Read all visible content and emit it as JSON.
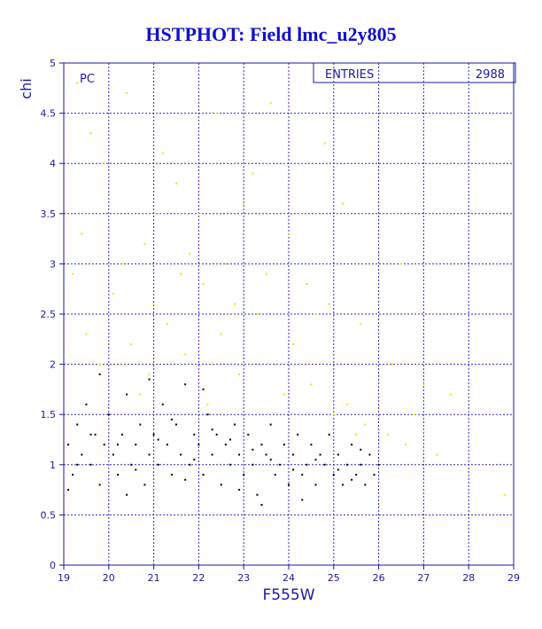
{
  "chart_data": {
    "type": "scatter",
    "title": "HSTPHOT: Field lmc_u2y805",
    "x_label": "F555W",
    "y_label": "chi",
    "annotation": "PC",
    "stats": {
      "label": "ENTRIES",
      "value": 2988
    },
    "xlim": [
      19,
      29
    ],
    "ylim": [
      0,
      5
    ],
    "xticks": [
      19,
      20,
      21,
      22,
      23,
      24,
      25,
      26,
      27,
      28,
      29
    ],
    "yticks": [
      0,
      0.5,
      1,
      1.5,
      2,
      2.5,
      3,
      3.5,
      4,
      4.5,
      5
    ],
    "grid": true,
    "series": [
      {
        "color": "#000000",
        "x": [
          19.1,
          19.2,
          19.3,
          19.4,
          19.5,
          19.6,
          19.7,
          19.8,
          19.9,
          20.0,
          20.1,
          20.2,
          20.3,
          20.4,
          20.5,
          20.6,
          20.7,
          20.8,
          20.9,
          21.0,
          21.1,
          21.2,
          21.3,
          21.4,
          21.5,
          21.6,
          21.7,
          21.8,
          21.9,
          22.0,
          22.1,
          22.2,
          22.3,
          22.4,
          22.5,
          22.6,
          22.7,
          22.8,
          22.9,
          23.0,
          23.1,
          23.2,
          23.3,
          23.4,
          23.5,
          23.6,
          23.7,
          23.8,
          23.9,
          24.0,
          24.1,
          24.2,
          24.3,
          24.4,
          24.5,
          24.6,
          24.7,
          24.8,
          24.9,
          25.0,
          25.1,
          25.2,
          25.3,
          25.4,
          25.5,
          25.6,
          25.7,
          25.8,
          25.9,
          26.0,
          19.3,
          19.6,
          20.2,
          20.6,
          21.1,
          21.4,
          21.9,
          22.3,
          22.7,
          23.2,
          23.6,
          24.1,
          24.6,
          25.1,
          25.6,
          19.8,
          20.9,
          22.1,
          23.4,
          24.3,
          25.4,
          19.1,
          20.4,
          21.7,
          22.9
        ],
        "values": [
          1.2,
          0.9,
          1.4,
          1.1,
          1.6,
          1.0,
          1.3,
          0.8,
          1.2,
          1.5,
          1.1,
          0.9,
          1.3,
          1.7,
          1.0,
          1.2,
          1.4,
          0.8,
          1.1,
          1.3,
          1.0,
          1.6,
          1.2,
          0.9,
          1.4,
          1.1,
          1.8,
          1.0,
          1.3,
          1.2,
          0.9,
          1.5,
          1.1,
          1.3,
          0.8,
          1.2,
          1.0,
          1.4,
          1.1,
          0.9,
          1.3,
          1.0,
          0.7,
          1.2,
          1.1,
          1.4,
          0.9,
          1.0,
          1.2,
          0.8,
          1.1,
          1.3,
          0.9,
          1.0,
          1.2,
          0.8,
          1.1,
          1.0,
          1.3,
          0.9,
          1.1,
          0.8,
          1.0,
          1.2,
          0.9,
          1.0,
          0.8,
          1.1,
          0.9,
          1.0,
          1.0,
          1.3,
          1.2,
          0.95,
          1.25,
          1.45,
          1.05,
          1.35,
          1.25,
          1.15,
          1.05,
          0.95,
          1.05,
          0.95,
          1.15,
          1.9,
          1.85,
          1.75,
          0.6,
          0.65,
          0.85,
          0.75,
          0.7,
          0.85,
          0.75
        ]
      },
      {
        "color": "#e8e800",
        "x": [
          19.3,
          19.6,
          20.0,
          20.4,
          20.8,
          21.2,
          21.6,
          22.0,
          22.4,
          22.8,
          23.2,
          23.6,
          24.0,
          24.4,
          24.8,
          25.2,
          25.6,
          26.0,
          26.5,
          27.0,
          19.2,
          19.5,
          19.8,
          20.1,
          20.5,
          20.9,
          21.3,
          21.7,
          22.1,
          22.5,
          22.9,
          23.3,
          23.7,
          24.1,
          24.5,
          24.9,
          25.3,
          25.7,
          26.2,
          26.8,
          27.3,
          28.8,
          19.4,
          20.3,
          21.0,
          21.8,
          22.6,
          23.5,
          24.6,
          25.0,
          26.3,
          26.6,
          27.6,
          20.7,
          22.2,
          23.9,
          25.5,
          19.9,
          21.5,
          23.0
        ],
        "values": [
          4.8,
          4.3,
          3.7,
          4.7,
          3.2,
          4.1,
          2.9,
          3.5,
          4.5,
          2.6,
          3.9,
          4.6,
          3.3,
          2.8,
          4.2,
          3.6,
          2.4,
          3.1,
          3.0,
          1.8,
          2.9,
          2.3,
          2.0,
          2.7,
          2.2,
          1.9,
          2.4,
          2.1,
          2.8,
          2.3,
          1.9,
          2.5,
          2.0,
          2.2,
          1.8,
          2.6,
          1.6,
          1.4,
          1.3,
          1.5,
          1.1,
          0.7,
          3.3,
          3.0,
          2.6,
          3.1,
          3.0,
          2.9,
          2.5,
          1.5,
          2.0,
          1.2,
          1.7,
          1.7,
          1.6,
          1.7,
          1.3,
          4.0,
          3.8,
          3.6
        ]
      }
    ]
  }
}
